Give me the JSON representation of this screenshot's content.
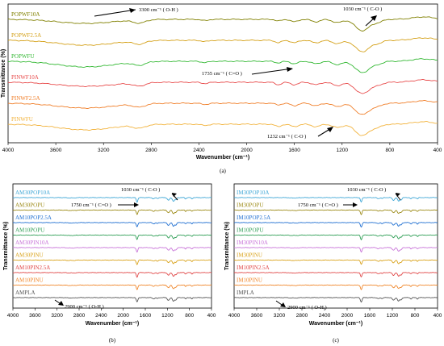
{
  "chart_data": [
    {
      "type": "line",
      "panel_label": "(a)",
      "xlabel": "Wavenumber (cm⁻¹)",
      "ylabel": "Transmittance (%)",
      "xlim": [
        4000,
        400
      ],
      "x_ticks": [
        "4000",
        "3600",
        "3200",
        "2800",
        "2400",
        "2000",
        "1600",
        "1200",
        "800",
        "400"
      ],
      "series": [
        {
          "name": "POPWF10A",
          "color": "#808000"
        },
        {
          "name": "POPWF2.5A",
          "color": "#d4a017"
        },
        {
          "name": "POPWFU",
          "color": "#33b833"
        },
        {
          "name": "PINWF10A",
          "color": "#e84c4c"
        },
        {
          "name": "PINWF2.5A",
          "color": "#f07f2a"
        },
        {
          "name": "PINWFU",
          "color": "#f2b33d"
        }
      ],
      "annotations": [
        "3300 cm⁻¹ ( O-H )",
        "1030 cm⁻¹ ( C-O )",
        "1735 cm⁻¹ ( C=O )",
        "1232 cm⁻¹ ( C-O )"
      ]
    },
    {
      "type": "line",
      "panel_label": "(b)",
      "xlabel": "Wavenumber (cm⁻¹)",
      "ylabel": "Transmittance (%)",
      "xlim": [
        4000,
        400
      ],
      "x_ticks": [
        "4000",
        "3600",
        "3200",
        "2800",
        "2400",
        "2000",
        "1600",
        "1200",
        "800",
        "400"
      ],
      "series": [
        {
          "name": "AM30POP10A",
          "color": "#3fa7d6"
        },
        {
          "name": "AM30POPU",
          "color": "#9c8a16"
        },
        {
          "name": "AM10POP2.5A",
          "color": "#1f6fd1"
        },
        {
          "name": "AM10POPU",
          "color": "#2e9e55"
        },
        {
          "name": "AM30PIN10A",
          "color": "#c873d8"
        },
        {
          "name": "AM30PINU",
          "color": "#d9a21a"
        },
        {
          "name": "AM10PIN2.5A",
          "color": "#e04646"
        },
        {
          "name": "AM10PINU",
          "color": "#f0862a"
        },
        {
          "name": "AMPLA",
          "color": "#555555"
        }
      ],
      "annotations": [
        "1030 cm⁻¹ ( C-O )",
        "1750 cm⁻¹ ( C=O )",
        "2900 cm⁻¹ ( O-H )"
      ]
    },
    {
      "type": "line",
      "panel_label": "(c)",
      "xlabel": "Wavenumber (cm⁻¹)",
      "ylabel": "Transmittance (%)",
      "xlim": [
        4000,
        400
      ],
      "x_ticks": [
        "4000",
        "3600",
        "3200",
        "2800",
        "2400",
        "2000",
        "1600",
        "1200",
        "800",
        "400"
      ],
      "series": [
        {
          "name": "IM30POP10A",
          "color": "#3fa7d6"
        },
        {
          "name": "IM30POPU",
          "color": "#9c8a16"
        },
        {
          "name": "IM10POP2.5A",
          "color": "#1f6fd1"
        },
        {
          "name": "IM10POPU",
          "color": "#2e9e55"
        },
        {
          "name": "IM30PIN10A",
          "color": "#c873d8"
        },
        {
          "name": "IM30PINU",
          "color": "#d9a21a"
        },
        {
          "name": "IM10PIN2.5A",
          "color": "#e04646"
        },
        {
          "name": "IM10PINU",
          "color": "#f0862a"
        },
        {
          "name": "IMPLA",
          "color": "#555555"
        }
      ],
      "annotations": [
        "1030 cm⁻¹ ( C-O )",
        "1750 cm⁻¹ ( C=O )",
        "2900 cm⁻¹ ( O-H )"
      ]
    }
  ]
}
